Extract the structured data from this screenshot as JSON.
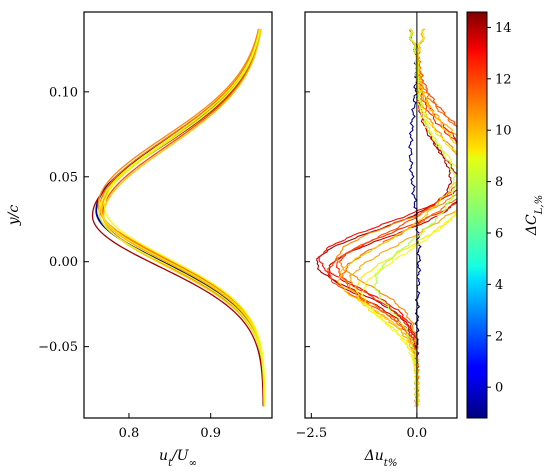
{
  "chart_data": [
    {
      "type": "line",
      "panel": "left",
      "xlabel": "u_t/U_∞",
      "ylabel": "y/c",
      "xlim": [
        0.745,
        0.975
      ],
      "ylim": [
        -0.092,
        0.147
      ],
      "xticks": [
        {
          "v": 0.8,
          "label": "0.8"
        },
        {
          "v": 0.9,
          "label": "0.9"
        }
      ],
      "yticks": [
        {
          "v": -0.05,
          "label": "−0.05"
        },
        {
          "v": 0.0,
          "label": "0.00"
        },
        {
          "v": 0.05,
          "label": "0.05"
        },
        {
          "v": 0.1,
          "label": "0.10"
        }
      ],
      "grid": false,
      "profile": {
        "y_center": 0.03,
        "u_inf": 0.965,
        "deficit": 0.205,
        "y_min": -0.085,
        "y_max": 0.137
      },
      "series": [
        {
          "dcl": -1.0,
          "shift": 0.0,
          "center_shift": 0.0
        },
        {
          "dcl": 14.0,
          "shift": -0.004,
          "center_shift": -0.003
        },
        {
          "dcl": 13.5,
          "shift": 0.003,
          "center_shift": -0.001
        },
        {
          "dcl": 12.5,
          "shift": 0.005,
          "center_shift": 0.001
        },
        {
          "dcl": 11.5,
          "shift": 0.007,
          "center_shift": -0.002
        },
        {
          "dcl": 11.0,
          "shift": 0.004,
          "center_shift": 0.002
        },
        {
          "dcl": 10.5,
          "shift": 0.002,
          "center_shift": 0.003
        },
        {
          "dcl": 10.0,
          "shift": 0.006,
          "center_shift": 0.0
        },
        {
          "dcl": 9.5,
          "shift": 0.008,
          "center_shift": -0.003
        },
        {
          "dcl": 9.0,
          "shift": 0.005,
          "center_shift": 0.001
        },
        {
          "dcl": 8.5,
          "shift": 0.009,
          "center_shift": 0.002
        },
        {
          "dcl": 8.0,
          "shift": 0.003,
          "center_shift": -0.001
        }
      ]
    },
    {
      "type": "line",
      "panel": "right",
      "xlabel": "Δu_{t%}",
      "xlim": [
        -2.65,
        0.95
      ],
      "ylim": [
        -0.092,
        0.147
      ],
      "xticks": [
        {
          "v": -2.5,
          "label": "−2.5"
        },
        {
          "v": 0.0,
          "label": "0.0"
        }
      ],
      "yticks": [
        -0.05,
        0.0,
        0.05,
        0.1
      ],
      "zero_line": 0.0,
      "grid": false,
      "series": [
        {
          "dcl": -1.0,
          "neg_amp": 0.05,
          "neg_center": 0.003,
          "pos_amp": -0.15,
          "pos_center": 0.065,
          "noise": 0.05
        },
        {
          "dcl": 14.0,
          "neg_amp": -2.45,
          "neg_center": 0.0,
          "pos_amp": 0.85,
          "pos_center": 0.045,
          "noise": 0.04
        },
        {
          "dcl": 13.5,
          "neg_amp": -2.2,
          "neg_center": -0.004,
          "pos_amp": 1.1,
          "pos_center": 0.04,
          "noise": 0.04
        },
        {
          "dcl": 12.5,
          "neg_amp": -2.35,
          "neg_center": 0.002,
          "pos_amp": 1.3,
          "pos_center": 0.055,
          "noise": 0.05
        },
        {
          "dcl": 12.0,
          "neg_amp": -1.95,
          "neg_center": -0.002,
          "pos_amp": 1.5,
          "pos_center": 0.05,
          "noise": 0.05
        },
        {
          "dcl": 11.5,
          "neg_amp": -2.1,
          "neg_center": -0.006,
          "pos_amp": 1.35,
          "pos_center": 0.062,
          "noise": 0.05
        },
        {
          "dcl": 11.0,
          "neg_amp": -1.75,
          "neg_center": -0.008,
          "pos_amp": 1.6,
          "pos_center": 0.058,
          "noise": 0.06
        },
        {
          "dcl": 10.5,
          "neg_amp": -2.0,
          "neg_center": 0.004,
          "pos_amp": 1.25,
          "pos_center": 0.048,
          "noise": 0.05
        },
        {
          "dcl": 10.0,
          "neg_amp": -1.6,
          "neg_center": -0.012,
          "pos_amp": 1.7,
          "pos_center": 0.052,
          "noise": 0.06
        },
        {
          "dcl": 9.5,
          "neg_amp": -1.85,
          "neg_center": -0.01,
          "pos_amp": 1.05,
          "pos_center": 0.058,
          "noise": 0.05
        },
        {
          "dcl": 9.0,
          "neg_amp": -1.45,
          "neg_center": -0.016,
          "pos_amp": 1.4,
          "pos_center": 0.045,
          "noise": 0.05
        },
        {
          "dcl": 8.5,
          "neg_amp": -1.3,
          "neg_center": -0.018,
          "pos_amp": 1.15,
          "pos_center": 0.042,
          "noise": 0.05
        },
        {
          "dcl": 7.5,
          "neg_amp": -1.0,
          "neg_center": -0.012,
          "pos_amp": 0.9,
          "pos_center": 0.046,
          "noise": 0.05
        }
      ]
    }
  ],
  "colorbar": {
    "label": "ΔC_{L,%}",
    "range": [
      -1.2,
      14.6
    ],
    "ticks": [
      {
        "v": 0,
        "label": "0"
      },
      {
        "v": 2,
        "label": "2"
      },
      {
        "v": 4,
        "label": "4"
      },
      {
        "v": 6,
        "label": "6"
      },
      {
        "v": 8,
        "label": "8"
      },
      {
        "v": 10,
        "label": "10"
      },
      {
        "v": 12,
        "label": "12"
      },
      {
        "v": 14,
        "label": "14"
      }
    ],
    "colormap": "jet"
  }
}
